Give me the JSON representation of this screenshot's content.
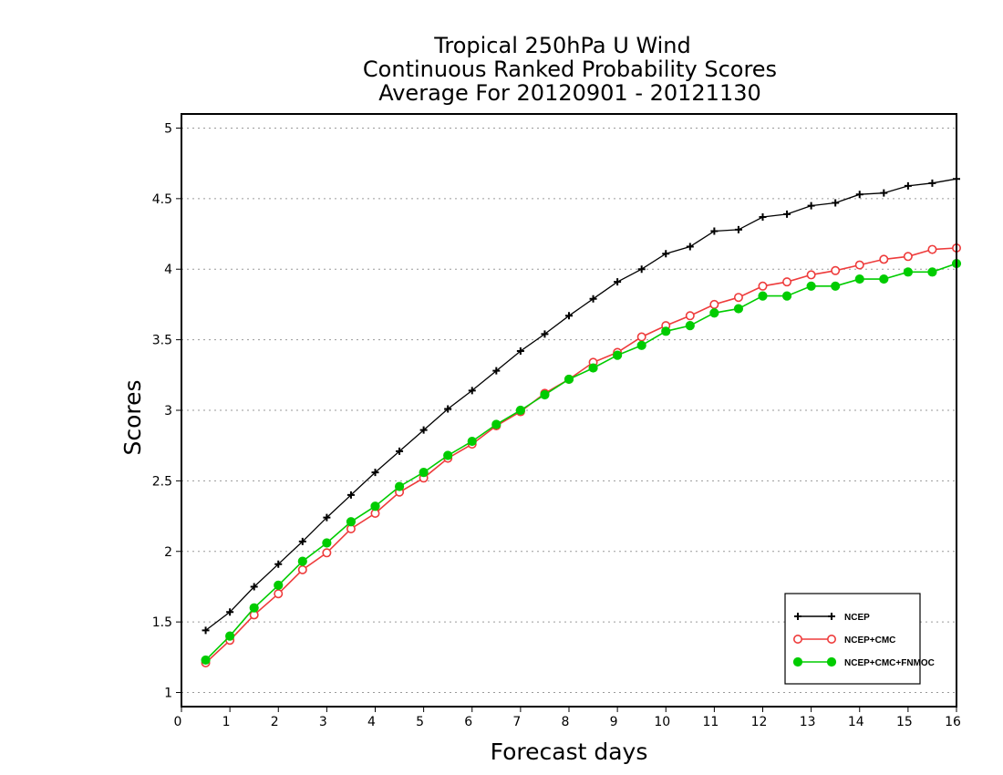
{
  "chart_data": {
    "type": "line",
    "title_lines": [
      "Tropical 250hPa U Wind",
      "Continuous Ranked Probability Scores",
      "Average For 20120901 - 20121130"
    ],
    "xlabel": "Forecast days",
    "ylabel": "Scores",
    "xlim": [
      0,
      16
    ],
    "ylim": [
      0.9,
      5.1
    ],
    "xticks": [
      0,
      1,
      2,
      3,
      4,
      5,
      6,
      7,
      8,
      9,
      10,
      11,
      12,
      13,
      14,
      15,
      16
    ],
    "yticks": [
      1,
      1.5,
      2,
      2.5,
      3,
      3.5,
      4,
      4.5,
      5
    ],
    "ytick_labels": [
      "1",
      "1.5",
      "2",
      "2.5",
      "3",
      "3.5",
      "4",
      "4.5",
      "5"
    ],
    "grid": "horizontal dotted",
    "legend_position": "bottom-right",
    "x": [
      0.5,
      1,
      1.5,
      2,
      2.5,
      3,
      3.5,
      4,
      4.5,
      5,
      5.5,
      6,
      6.5,
      7,
      7.5,
      8,
      8.5,
      9,
      9.5,
      10,
      10.5,
      11,
      11.5,
      12,
      12.5,
      13,
      13.5,
      14,
      14.5,
      15,
      15.5,
      16
    ],
    "series": [
      {
        "name": "NCEP",
        "color": "#000000",
        "marker": "plus",
        "values": [
          1.44,
          1.57,
          1.75,
          1.91,
          2.07,
          2.24,
          2.4,
          2.56,
          2.71,
          2.86,
          3.01,
          3.14,
          3.28,
          3.42,
          3.54,
          3.67,
          3.79,
          3.91,
          4.0,
          4.11,
          4.16,
          4.27,
          4.28,
          4.37,
          4.39,
          4.45,
          4.47,
          4.53,
          4.54,
          4.59,
          4.61,
          4.64
        ]
      },
      {
        "name": "NCEP+CMC",
        "color": "#ee3b3b",
        "marker": "open-circle",
        "values": [
          1.21,
          1.37,
          1.55,
          1.7,
          1.87,
          1.99,
          2.16,
          2.27,
          2.42,
          2.52,
          2.66,
          2.76,
          2.89,
          2.99,
          3.12,
          3.22,
          3.34,
          3.41,
          3.52,
          3.6,
          3.67,
          3.75,
          3.8,
          3.88,
          3.91,
          3.96,
          3.99,
          4.03,
          4.07,
          4.09,
          4.14,
          4.15
        ]
      },
      {
        "name": "NCEP+CMC+FNMOC",
        "color": "#00cc00",
        "marker": "filled-circle",
        "values": [
          1.23,
          1.4,
          1.6,
          1.76,
          1.93,
          2.06,
          2.21,
          2.32,
          2.46,
          2.56,
          2.68,
          2.78,
          2.9,
          3.0,
          3.11,
          3.22,
          3.3,
          3.39,
          3.46,
          3.56,
          3.6,
          3.69,
          3.72,
          3.81,
          3.81,
          3.88,
          3.88,
          3.93,
          3.93,
          3.98,
          3.98,
          4.04
        ]
      }
    ]
  }
}
